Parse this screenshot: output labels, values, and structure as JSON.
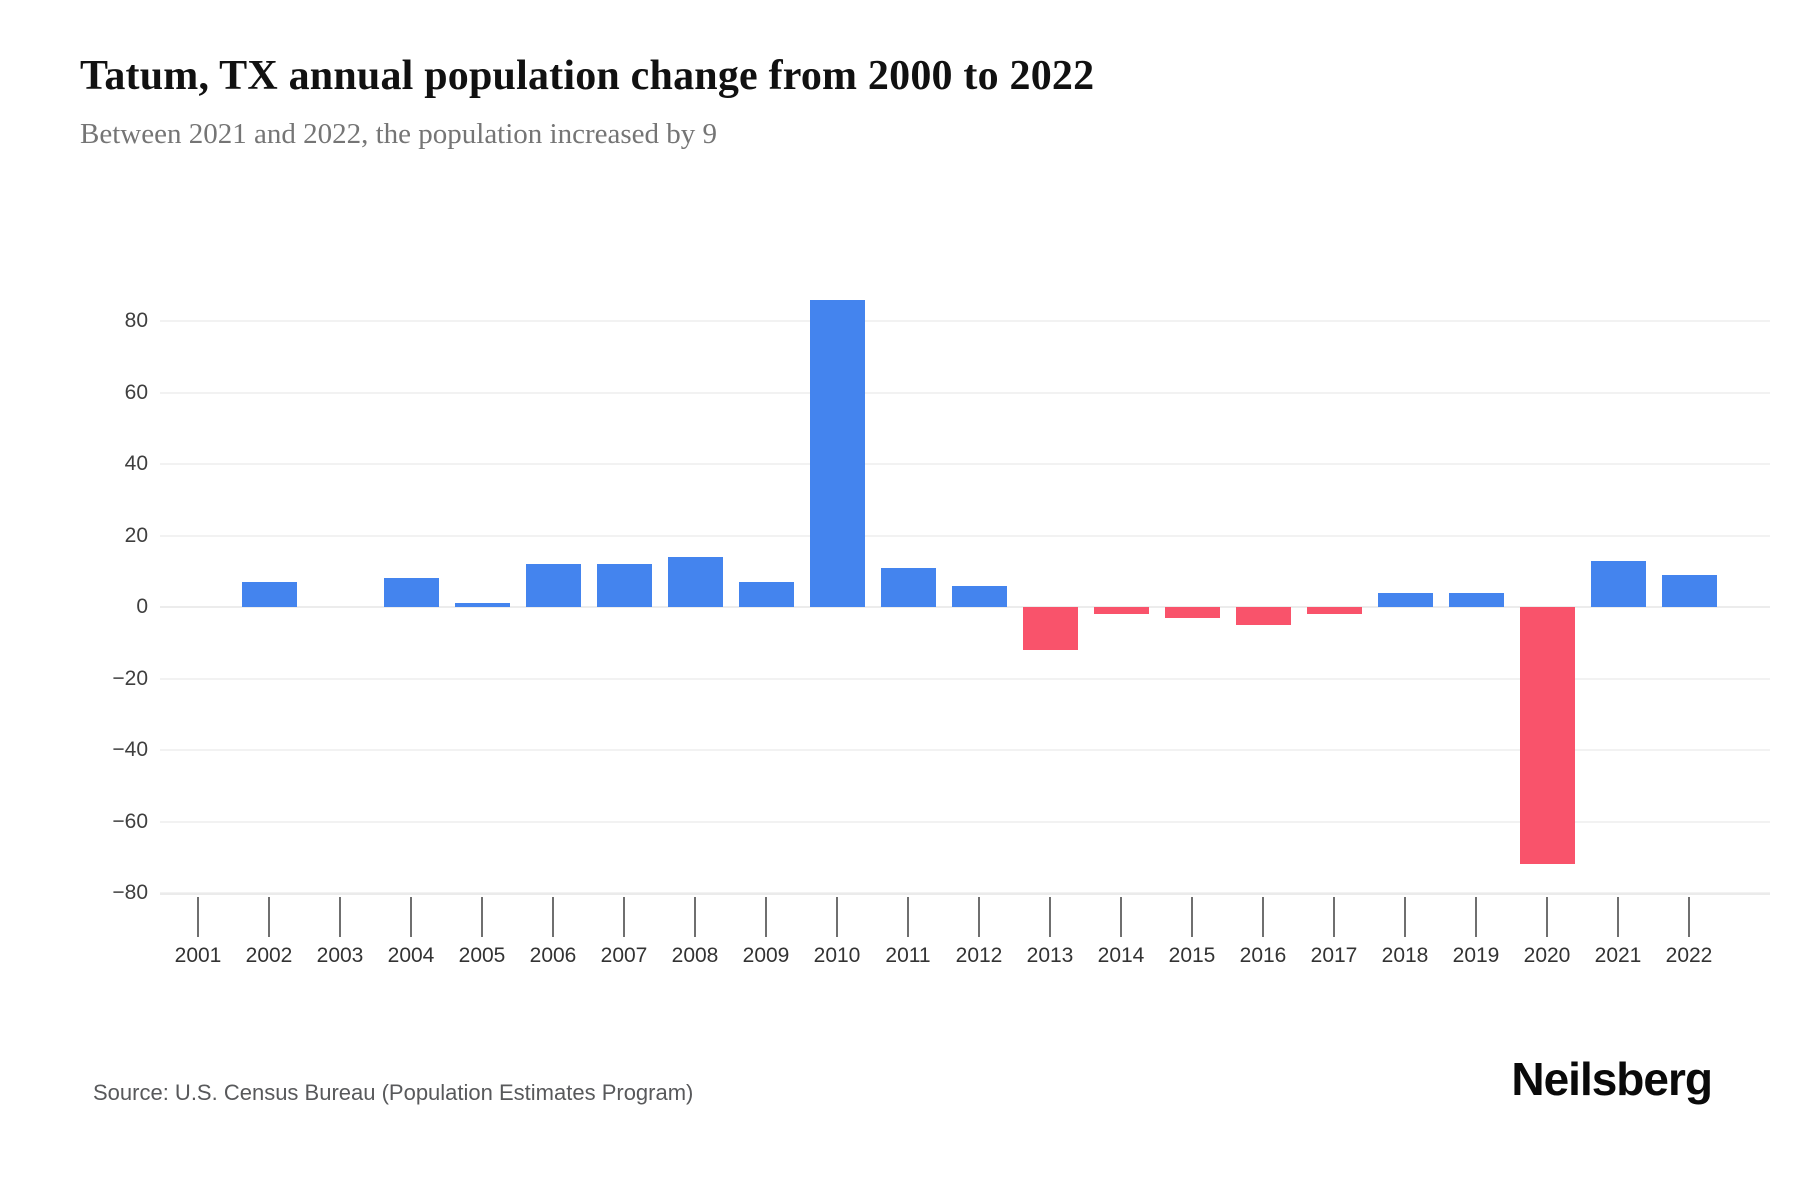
{
  "header": {
    "title": "Tatum, TX annual population change from 2000 to 2022",
    "subtitle": "Between 2021 and 2022, the population increased by 9"
  },
  "footer": {
    "source": "Source: U.S. Census Bureau (Population Estimates Program)",
    "brand": "Neilsberg"
  },
  "colors": {
    "positive_bar": "#4484ee",
    "negative_bar": "#f9536b",
    "gridline": "#f2f2f2",
    "axis_text": "#3f3f3f"
  },
  "chart_data": {
    "type": "bar",
    "title": "Tatum, TX annual population change from 2000 to 2022",
    "subtitle": "Between 2021 and 2022, the population increased by 9",
    "categories": [
      "2001",
      "2002",
      "2003",
      "2004",
      "2005",
      "2006",
      "2007",
      "2008",
      "2009",
      "2010",
      "2011",
      "2012",
      "2013",
      "2014",
      "2015",
      "2016",
      "2017",
      "2018",
      "2019",
      "2020",
      "2021",
      "2022"
    ],
    "values": [
      0,
      7,
      0,
      8,
      1,
      12,
      12,
      14,
      7,
      86,
      11,
      6,
      -12,
      -2,
      -3,
      -5,
      -2,
      4,
      4,
      -72,
      13,
      9
    ],
    "xlabel": "",
    "ylabel": "",
    "ylim": [
      -80,
      88
    ],
    "yticks": [
      80,
      60,
      40,
      20,
      0,
      -20,
      -40,
      -60,
      -80
    ],
    "grid": true,
    "legend": false,
    "positive_color": "#4484ee",
    "negative_color": "#f9536b"
  }
}
